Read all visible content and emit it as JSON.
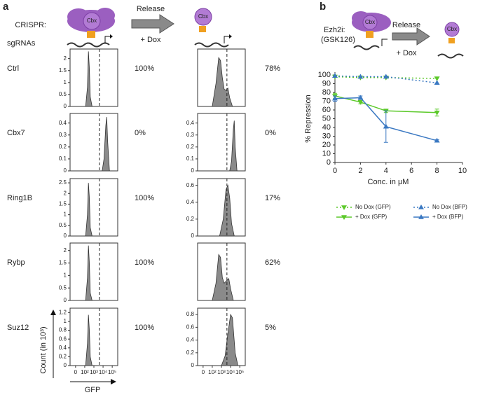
{
  "figure": {
    "panel_a": "a",
    "panel_b": "b",
    "crispr": "CRISPR:",
    "release": "Release",
    "dox": "+ Dox",
    "sgrnas": "sgRNAs",
    "cbx": "Cbx",
    "count_label": "Count (in 10³)",
    "gfp_label": "GFP",
    "ezh2i": "Ezh2i:",
    "gsk": "(GSK126)"
  },
  "chart_data": [
    {
      "type": "area",
      "title": "Ctrl",
      "annotation": "100%",
      "x": [
        2.1,
        2.3,
        2.4,
        2.5,
        2.6,
        2.8
      ],
      "values": [
        0,
        0.8,
        2.3,
        1.6,
        0.4,
        0
      ],
      "xlim": [
        0.4,
        5.6
      ],
      "ylim": [
        0,
        2.4
      ],
      "yticks": [
        0,
        0.5,
        1.0,
        1.5,
        2.0
      ],
      "threshold": 3.6,
      "color": "#8a8a8a"
    },
    {
      "type": "area",
      "annotation": "78%",
      "x": [
        2.0,
        2.4,
        2.7,
        2.9,
        3.1,
        3.3,
        3.5,
        3.7,
        3.9,
        4.2
      ],
      "values": [
        0,
        0.4,
        0.85,
        0.8,
        0.5,
        0.3,
        0.28,
        0.32,
        0.15,
        0
      ],
      "xlim": [
        0.4,
        5.6
      ],
      "ylim": [
        0,
        1
      ],
      "threshold": 3.6,
      "color": "#8a8a8a"
    },
    {
      "type": "area",
      "title": "Cbx7",
      "annotation": "0%",
      "x": [
        3.9,
        4.1,
        4.3,
        4.4,
        4.5,
        4.7
      ],
      "values": [
        0,
        0.1,
        0.38,
        0.45,
        0.25,
        0
      ],
      "xlim": [
        0.4,
        5.6
      ],
      "ylim": [
        0,
        0.48
      ],
      "yticks": [
        0,
        0.1,
        0.2,
        0.3,
        0.4
      ],
      "threshold": 3.6,
      "color": "#8a8a8a"
    },
    {
      "type": "area",
      "annotation": "0%",
      "x": [
        3.9,
        4.1,
        4.3,
        4.4,
        4.5,
        4.7
      ],
      "values": [
        0,
        0.08,
        0.35,
        0.42,
        0.2,
        0
      ],
      "xlim": [
        0.4,
        5.6
      ],
      "ylim": [
        0,
        0.48
      ],
      "yticks": [
        0,
        0.1,
        0.2,
        0.3,
        0.4
      ],
      "threshold": 3.6,
      "color": "#8a8a8a"
    },
    {
      "type": "area",
      "title": "Ring1B",
      "annotation": "100%",
      "x": [
        2.1,
        2.3,
        2.4,
        2.5,
        2.6,
        2.8
      ],
      "values": [
        0,
        1.0,
        2.5,
        1.8,
        0.4,
        0
      ],
      "xlim": [
        0.4,
        5.6
      ],
      "ylim": [
        0,
        2.7
      ],
      "yticks": [
        0,
        0.5,
        1.0,
        1.5,
        2.0,
        2.5
      ],
      "threshold": 3.6,
      "color": "#8a8a8a"
    },
    {
      "type": "area",
      "annotation": "17%",
      "x": [
        2.8,
        3.2,
        3.5,
        3.7,
        3.9,
        4.1,
        4.4
      ],
      "values": [
        0,
        0.2,
        0.55,
        0.6,
        0.45,
        0.15,
        0
      ],
      "xlim": [
        0.4,
        5.6
      ],
      "ylim": [
        0,
        0.68
      ],
      "yticks": [
        0,
        0.2,
        0.4,
        0.6
      ],
      "threshold": 3.6,
      "color": "#8a8a8a"
    },
    {
      "type": "area",
      "title": "Rybp",
      "annotation": "100%",
      "x": [
        2.1,
        2.3,
        2.4,
        2.5,
        2.6,
        2.8
      ],
      "values": [
        0,
        0.9,
        2.2,
        1.5,
        0.3,
        0
      ],
      "xlim": [
        0.4,
        5.6
      ],
      "ylim": [
        0,
        2.3
      ],
      "yticks": [
        0,
        0.5,
        1.0,
        1.5,
        2.0
      ],
      "threshold": 3.6,
      "color": "#8a8a8a"
    },
    {
      "type": "area",
      "annotation": "62%",
      "x": [
        2.0,
        2.4,
        2.7,
        2.9,
        3.1,
        3.3,
        3.6,
        3.8,
        4.0,
        4.3
      ],
      "values": [
        0,
        0.3,
        0.8,
        0.75,
        0.4,
        0.3,
        0.35,
        0.38,
        0.2,
        0
      ],
      "xlim": [
        0.4,
        5.6
      ],
      "ylim": [
        0,
        1
      ],
      "threshold": 3.6,
      "color": "#8a8a8a"
    },
    {
      "type": "area",
      "title": "Suz12",
      "annotation": "100%",
      "x": [
        2.1,
        2.3,
        2.4,
        2.5,
        2.6,
        2.8
      ],
      "values": [
        0,
        0.5,
        1.15,
        0.8,
        0.2,
        0
      ],
      "xlim": [
        0.4,
        5.6
      ],
      "ylim": [
        0,
        1.3
      ],
      "yticks": [
        0,
        0.2,
        0.4,
        0.6,
        0.8,
        1.0,
        1.2
      ],
      "xticks": [
        {
          "value": 1,
          "label": "0"
        },
        {
          "value": 2,
          "label": "10²"
        },
        {
          "value": 3,
          "label": "10³"
        },
        {
          "value": 4,
          "label": "10⁴"
        },
        {
          "value": 5,
          "label": "10⁵"
        }
      ],
      "threshold": 3.6,
      "color": "#8a8a8a"
    },
    {
      "type": "area",
      "annotation": "5%",
      "x": [
        3.0,
        3.4,
        3.7,
        4.0,
        4.2,
        4.5,
        4.8
      ],
      "values": [
        0,
        0.15,
        0.5,
        0.8,
        0.75,
        0.2,
        0
      ],
      "xlim": [
        0.4,
        5.6
      ],
      "ylim": [
        0,
        0.9
      ],
      "yticks": [
        0,
        0.2,
        0.4,
        0.6,
        0.8
      ],
      "xticks": [
        {
          "value": 1,
          "label": "0"
        },
        {
          "value": 2,
          "label": "10²"
        },
        {
          "value": 3,
          "label": "10³"
        },
        {
          "value": 4,
          "label": "10⁴"
        },
        {
          "value": 5,
          "label": "10⁵"
        }
      ],
      "threshold": 3.6,
      "color": "#8a8a8a"
    },
    {
      "type": "line",
      "x_label": "Conc. in μM",
      "y_label": "% Repression",
      "x": [
        0,
        2,
        4,
        8
      ],
      "xlim": [
        0,
        10
      ],
      "xticks": [
        0,
        2,
        4,
        6,
        8,
        10
      ],
      "ylim": [
        0,
        100
      ],
      "yticks": [
        0,
        10,
        20,
        30,
        40,
        50,
        60,
        70,
        80,
        90,
        100
      ],
      "legend": "bottom",
      "series": [
        {
          "name": "No Dox (GFP)",
          "color": "#5cc92a",
          "dashed": true,
          "marker": "down",
          "values": [
            98,
            97,
            97,
            96
          ]
        },
        {
          "name": "No Dox (BFP)",
          "color": "#3a78c2",
          "dashed": true,
          "marker": "up",
          "values": [
            99,
            98,
            98,
            91
          ]
        },
        {
          "name": "+ Dox (GFP)",
          "color": "#5cc92a",
          "dashed": false,
          "marker": "down",
          "values": [
            76,
            69,
            59,
            57
          ],
          "errors": [
            3,
            2,
            2,
            4
          ]
        },
        {
          "name": "+ Dox (BFP)",
          "color": "#3a78c2",
          "dashed": false,
          "marker": "up",
          "values": [
            73,
            74,
            41,
            25
          ],
          "errors": [
            3,
            2,
            18,
            1
          ]
        }
      ]
    }
  ]
}
